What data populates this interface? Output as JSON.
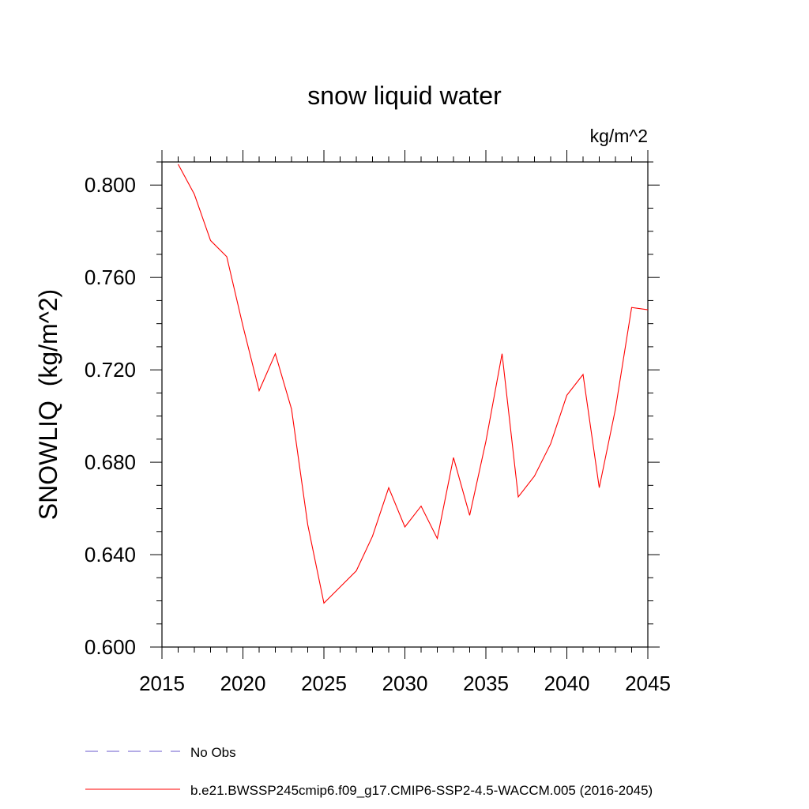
{
  "chart_data": {
    "type": "line",
    "title": "snow liquid water",
    "units": "kg/m^2",
    "xlabel": "",
    "ylabel": "SNOWLIQ  (kg/m^2)",
    "xlim": [
      2015,
      2045
    ],
    "ylim": [
      0.6,
      0.81
    ],
    "x_ticks": [
      2015,
      2020,
      2025,
      2030,
      2035,
      2040,
      2045
    ],
    "x_tick_labels": [
      "2015",
      "2020",
      "2025",
      "2030",
      "2035",
      "2040",
      "2045"
    ],
    "y_ticks": [
      0.6,
      0.64,
      0.68,
      0.72,
      0.76,
      0.8
    ],
    "y_tick_labels": [
      "0.600",
      "0.640",
      "0.680",
      "0.720",
      "0.760",
      "0.800"
    ],
    "grid": false,
    "series": [
      {
        "name": "b.e21.BWSSP245cmip6.f09_g17.CMIP6-SSP2-4.5-WACCM.005 (2016-2045)",
        "color": "#ff0000",
        "dash": "solid",
        "x": [
          2016,
          2017,
          2018,
          2019,
          2020,
          2021,
          2022,
          2023,
          2024,
          2025,
          2026,
          2027,
          2028,
          2029,
          2030,
          2031,
          2032,
          2033,
          2034,
          2035,
          2036,
          2037,
          2038,
          2039,
          2040,
          2041,
          2042,
          2043,
          2044,
          2045
        ],
        "y": [
          0.809,
          0.796,
          0.776,
          0.769,
          0.739,
          0.711,
          0.727,
          0.703,
          0.653,
          0.619,
          0.626,
          0.633,
          0.648,
          0.669,
          0.652,
          0.661,
          0.647,
          0.682,
          0.657,
          0.689,
          0.727,
          0.665,
          0.674,
          0.688,
          0.709,
          0.718,
          0.669,
          0.703,
          0.747,
          0.746
        ]
      }
    ],
    "legend": [
      {
        "label": "No Obs",
        "color": "#6a5acd",
        "dash": "dashed"
      },
      {
        "label": "b.e21.BWSSP245cmip6.f09_g17.CMIP6-SSP2-4.5-WACCM.005 (2016-2045)",
        "color": "#ff0000",
        "dash": "solid"
      }
    ]
  }
}
